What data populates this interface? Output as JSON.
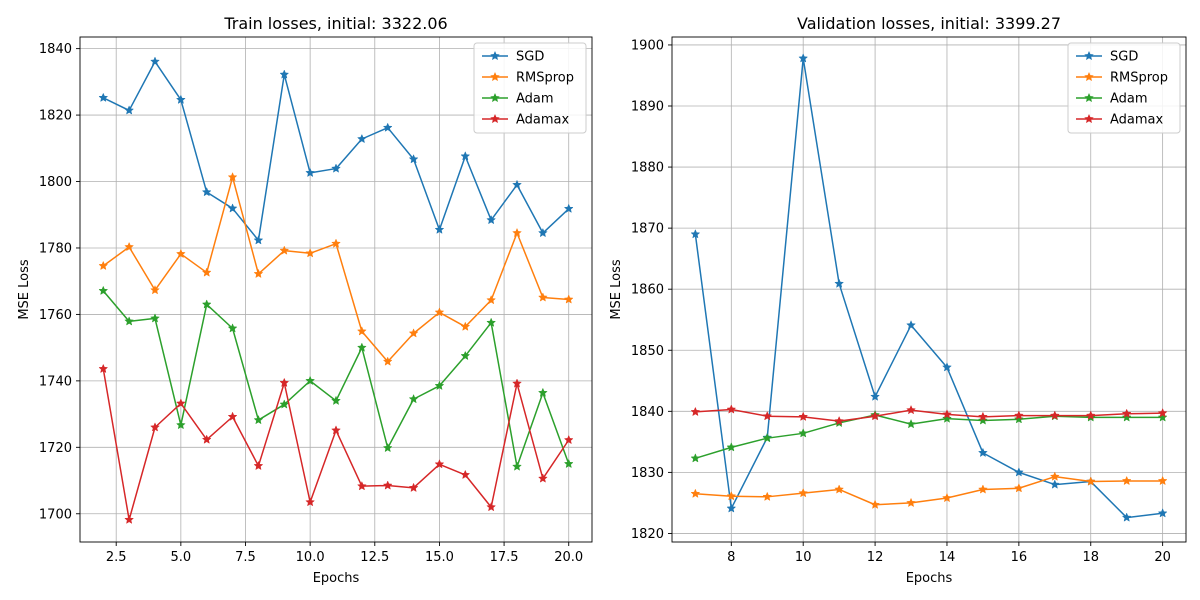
{
  "chart_data": [
    {
      "type": "line",
      "title": "Train losses, initial: 3322.06",
      "xlabel": "Epochs",
      "ylabel": "MSE Loss",
      "xlim": [
        1.1,
        20.9
      ],
      "ylim": [
        1691.5,
        1843.5
      ],
      "xticks": [
        2.5,
        5.0,
        7.5,
        10.0,
        12.5,
        15.0,
        17.5,
        20.0
      ],
      "xtick_labels": [
        "2.5",
        "5.0",
        "7.5",
        "10.0",
        "12.5",
        "15.0",
        "17.5",
        "20.0"
      ],
      "yticks": [
        1700,
        1720,
        1740,
        1760,
        1780,
        1800,
        1820,
        1840
      ],
      "ytick_labels": [
        "1700",
        "1720",
        "1740",
        "1760",
        "1780",
        "1800",
        "1820",
        "1840"
      ],
      "grid": true,
      "legend": "top-right",
      "x": [
        2,
        3,
        4,
        5,
        6,
        7,
        8,
        9,
        10,
        11,
        12,
        13,
        14,
        15,
        16,
        17,
        18,
        19,
        20
      ],
      "series": [
        {
          "name": "SGD",
          "color": "#1f77b4",
          "values": [
            1825.2,
            1821.4,
            1836.1,
            1824.6,
            1796.8,
            1791.9,
            1782.3,
            1832.2,
            1802.6,
            1803.9,
            1812.8,
            1816.2,
            1806.7,
            1785.5,
            1807.6,
            1788.4,
            1799.0,
            1784.5,
            1791.8
          ]
        },
        {
          "name": "RMSprop",
          "color": "#ff7f0e",
          "values": [
            1774.6,
            1780.3,
            1767.3,
            1778.2,
            1772.6,
            1801.3,
            1772.2,
            1779.2,
            1778.4,
            1781.3,
            1754.9,
            1745.8,
            1754.3,
            1760.6,
            1756.3,
            1764.3,
            1784.5,
            1765.1,
            1764.5
          ]
        },
        {
          "name": "Adam",
          "color": "#2ca02c",
          "values": [
            1767.1,
            1757.9,
            1758.8,
            1726.7,
            1763.0,
            1755.8,
            1728.2,
            1732.9,
            1740.0,
            1734.0,
            1750.0,
            1719.8,
            1734.5,
            1738.5,
            1747.5,
            1757.5,
            1714.2,
            1736.4,
            1715.0
          ]
        },
        {
          "name": "Adamax",
          "color": "#d62728",
          "values": [
            1743.6,
            1698.2,
            1726.0,
            1733.2,
            1722.3,
            1729.2,
            1714.4,
            1739.4,
            1703.5,
            1725.1,
            1708.3,
            1708.5,
            1707.8,
            1714.9,
            1711.7,
            1702.0,
            1739.2,
            1710.6,
            1722.2
          ]
        }
      ]
    },
    {
      "type": "line",
      "title": "Validation losses, initial: 3399.27",
      "xlabel": "Epochs",
      "ylabel": "MSE Loss",
      "xlim": [
        6.35,
        20.65
      ],
      "ylim": [
        1818.6,
        1901.3
      ],
      "xticks": [
        8,
        10,
        12,
        14,
        16,
        18,
        20
      ],
      "xtick_labels": [
        "8",
        "10",
        "12",
        "14",
        "16",
        "18",
        "20"
      ],
      "yticks": [
        1820,
        1830,
        1840,
        1850,
        1860,
        1870,
        1880,
        1890,
        1900
      ],
      "ytick_labels": [
        "1820",
        "1830",
        "1840",
        "1850",
        "1860",
        "1870",
        "1880",
        "1890",
        "1900"
      ],
      "grid": true,
      "legend": "top-right",
      "x": [
        7,
        8,
        9,
        10,
        11,
        12,
        13,
        14,
        15,
        16,
        17,
        18,
        19,
        20
      ],
      "series": [
        {
          "name": "SGD",
          "color": "#1f77b4",
          "values": [
            1869.0,
            1824.1,
            1835.7,
            1897.8,
            1860.9,
            1842.4,
            1854.1,
            1847.2,
            1833.2,
            1830.0,
            1828.0,
            1828.5,
            1822.6,
            1823.3
          ]
        },
        {
          "name": "RMSprop",
          "color": "#ff7f0e",
          "values": [
            1826.5,
            1826.1,
            1826.0,
            1826.6,
            1827.2,
            1824.7,
            1825.0,
            1825.8,
            1827.2,
            1827.4,
            1829.3,
            1828.5,
            1828.6,
            1828.6
          ]
        },
        {
          "name": "Adam",
          "color": "#2ca02c",
          "values": [
            1832.3,
            1834.1,
            1835.6,
            1836.4,
            1838.1,
            1839.4,
            1837.9,
            1838.8,
            1838.5,
            1838.7,
            1839.2,
            1839.0,
            1839.0,
            1839.0
          ]
        },
        {
          "name": "Adamax",
          "color": "#d62728",
          "values": [
            1839.9,
            1840.3,
            1839.2,
            1839.1,
            1838.4,
            1839.2,
            1840.2,
            1839.5,
            1839.1,
            1839.3,
            1839.3,
            1839.3,
            1839.6,
            1839.7
          ]
        }
      ]
    }
  ]
}
